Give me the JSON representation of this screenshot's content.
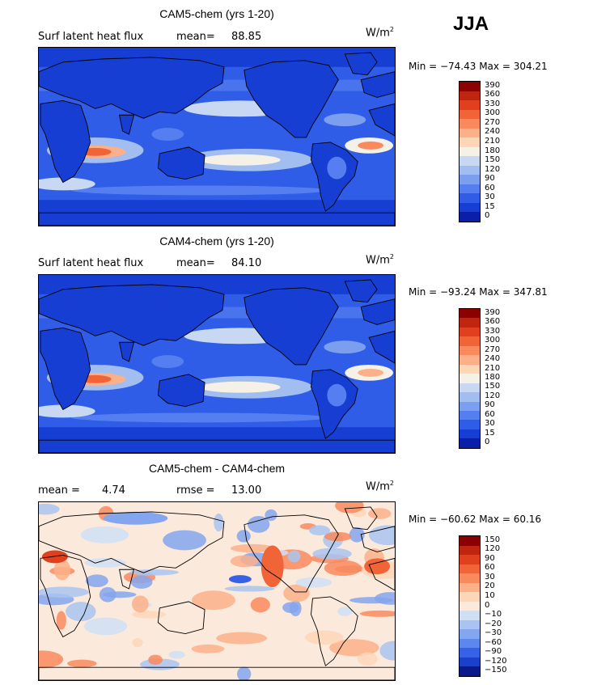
{
  "season": "JJA",
  "units_base": "W/m",
  "units_exp": "2",
  "panels": [
    {
      "title": "CAM5-chem (yrs 1-20)",
      "field_label": "Surf latent heat flux",
      "stat1_label": "mean=",
      "stat1_value": "88.85",
      "stat2_label": "",
      "stat2_value": "",
      "minmax": "Min = −74.43 Max = 304.21",
      "cb_labels": [
        "390",
        "360",
        "330",
        "300",
        "270",
        "240",
        "210",
        "180",
        "150",
        "120",
        "90",
        "60",
        "30",
        "15",
        "0"
      ],
      "cb_colors": [
        "#8b0000",
        "#c0250f",
        "#e0401e",
        "#f06438",
        "#f88a5e",
        "#fbb08a",
        "#fdd6b8",
        "#f5f1e6",
        "#c8d8f2",
        "#a2bdf0",
        "#7b9fee",
        "#557ff0",
        "#2f5de8",
        "#163ed2",
        "#0a1fa8"
      ],
      "map_kind": "absolute"
    },
    {
      "title": "CAM4-chem (yrs 1-20)",
      "field_label": "Surf latent heat flux",
      "stat1_label": "mean=",
      "stat1_value": "84.10",
      "stat2_label": "",
      "stat2_value": "",
      "minmax": "Min = −93.24 Max = 347.81",
      "cb_labels": [
        "390",
        "360",
        "330",
        "300",
        "270",
        "240",
        "210",
        "180",
        "150",
        "120",
        "90",
        "60",
        "30",
        "15",
        "0"
      ],
      "cb_colors": [
        "#8b0000",
        "#c0250f",
        "#e0401e",
        "#f06438",
        "#f88a5e",
        "#fbb08a",
        "#fdd6b8",
        "#f5f1e6",
        "#c8d8f2",
        "#a2bdf0",
        "#7b9fee",
        "#557ff0",
        "#2f5de8",
        "#163ed2",
        "#0a1fa8"
      ],
      "map_kind": "absolute"
    },
    {
      "title": "CAM5-chem - CAM4-chem",
      "field_label": "",
      "stat1_label": "mean =",
      "stat1_value": "4.74",
      "stat2_label": "rmse =",
      "stat2_value": "13.00",
      "minmax": "Min = −60.62 Max = 60.16",
      "cb_labels": [
        "150",
        "120",
        "90",
        "60",
        "30",
        "20",
        "10",
        "0",
        "−10",
        "−20",
        "−30",
        "−60",
        "−90",
        "−120",
        "−150"
      ],
      "cb_colors": [
        "#8b0000",
        "#c0250f",
        "#e0401e",
        "#f06438",
        "#f88a5e",
        "#fbb08a",
        "#fdd6b8",
        "#fbe9dc",
        "#cfdff4",
        "#a9c4f0",
        "#84a6ee",
        "#5d86ee",
        "#3862e6",
        "#1a40cc",
        "#0a1a8a"
      ],
      "map_kind": "difference"
    }
  ],
  "chart_data": [
    {
      "type": "heatmap",
      "title": "CAM5-chem (yrs 1-20)",
      "variable": "Surf latent heat flux",
      "units": "W/m2",
      "season": "JJA",
      "mean": 88.85,
      "min": -74.43,
      "max": 304.21,
      "contour_levels": [
        0,
        15,
        30,
        60,
        90,
        120,
        150,
        180,
        210,
        240,
        270,
        300,
        330,
        360,
        390
      ]
    },
    {
      "type": "heatmap",
      "title": "CAM4-chem (yrs 1-20)",
      "variable": "Surf latent heat flux",
      "units": "W/m2",
      "season": "JJA",
      "mean": 84.1,
      "min": -93.24,
      "max": 347.81,
      "contour_levels": [
        0,
        15,
        30,
        60,
        90,
        120,
        150,
        180,
        210,
        240,
        270,
        300,
        330,
        360,
        390
      ]
    },
    {
      "type": "heatmap",
      "title": "CAM5-chem - CAM4-chem",
      "units": "W/m2",
      "season": "JJA",
      "mean": 4.74,
      "rmse": 13.0,
      "min": -60.62,
      "max": 60.16,
      "contour_levels": [
        -150,
        -120,
        -90,
        -60,
        -30,
        -20,
        -10,
        0,
        10,
        20,
        30,
        60,
        90,
        120,
        150
      ]
    }
  ]
}
